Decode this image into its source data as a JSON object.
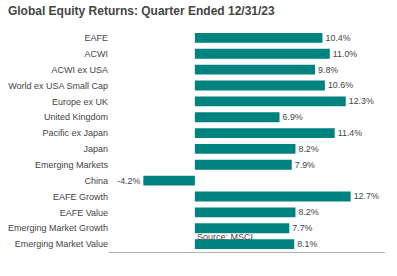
{
  "chart_data": {
    "type": "bar",
    "orientation": "horizontal",
    "title": "Global Equity Returns: Quarter Ended 12/31/23",
    "annotations": [
      "Source: MSCI"
    ],
    "categories": [
      "Emerging Market Value",
      "Emerging Market Growth",
      "EAFE Value",
      "EAFE Growth",
      "China",
      "Emerging Markets",
      "Japan",
      "Pacific ex Japan",
      "United Kingdom",
      "Europe ex UK",
      "World ex USA Small Cap",
      "ACWI ex USA",
      "ACWI",
      "EAFE"
    ],
    "values": [
      8.1,
      7.7,
      8.2,
      12.7,
      -4.2,
      7.9,
      8.2,
      11.4,
      6.9,
      12.3,
      10.6,
      9.8,
      11.0,
      10.4
    ],
    "value_labels": [
      "8.1%",
      "7.7%",
      "8.2%",
      "12.7%",
      "-4.2%",
      "7.9%",
      "8.2%",
      "11.4%",
      "6.9%",
      "12.3%",
      "10.6%",
      "9.8%",
      "11.0%",
      "10.4%"
    ],
    "data_labels": true,
    "color": "#00827f",
    "xlim": [
      -7.0,
      15.5
    ],
    "grid": false,
    "tick_labels": "y"
  }
}
